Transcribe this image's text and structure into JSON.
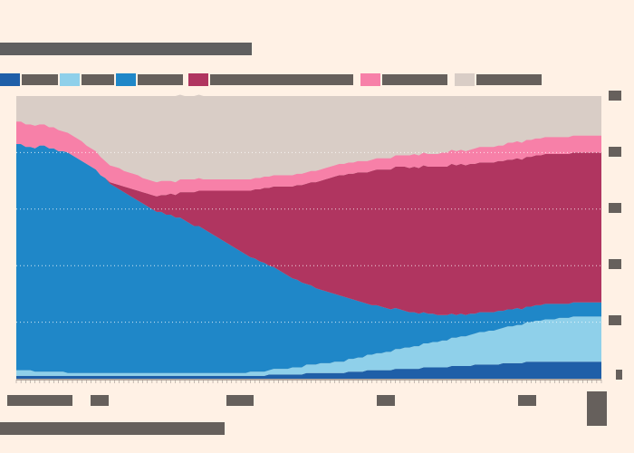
{
  "chart_data": {
    "type": "area",
    "stacked": true,
    "percent": true,
    "title": "",
    "xlabel": "",
    "ylabel": "",
    "ylim": [
      0,
      100
    ],
    "yticks": [
      "0",
      "20",
      "40",
      "60",
      "80",
      "100"
    ],
    "xticks": [],
    "grid": true,
    "legend_position": "top",
    "x": [
      0,
      1,
      2,
      3,
      4,
      5,
      6,
      7,
      8,
      9,
      10,
      11,
      12,
      13,
      14,
      15,
      16,
      17,
      18,
      19,
      20,
      21,
      22,
      23,
      24,
      25,
      26,
      27,
      28,
      29,
      30,
      31,
      32,
      33,
      34,
      35,
      36,
      37,
      38,
      39,
      40,
      41,
      42,
      43,
      44,
      45,
      46,
      47,
      48,
      49,
      50,
      51,
      52,
      53,
      54,
      55,
      56,
      57,
      58,
      59,
      60,
      61,
      62,
      63,
      64,
      65,
      66,
      67,
      68,
      69,
      70,
      71,
      72,
      73,
      74,
      75,
      76,
      77,
      78,
      79,
      80,
      81,
      82,
      83,
      84,
      85,
      86,
      87,
      88,
      89,
      90,
      91,
      92,
      93,
      94,
      95,
      96,
      97,
      98,
      99,
      100,
      101,
      102,
      103,
      104,
      105,
      106,
      107,
      108,
      109,
      110,
      111,
      112,
      113,
      114,
      115,
      116,
      117,
      118,
      119,
      120,
      121,
      122,
      123,
      124,
      125
    ],
    "series": [
      {
        "color": "#1f5fa8",
        "values": [
          1.0,
          1.0,
          1.0,
          1.0,
          1.0,
          1.0,
          1.0,
          1.0,
          1.0,
          1.0,
          1.0,
          1.0,
          1.0,
          1.0,
          1.0,
          1.0,
          1.0,
          1.0,
          1.0,
          1.0,
          1.0,
          1.0,
          1.0,
          1.0,
          1.0,
          1.0,
          1.0,
          1.0,
          1.0,
          1.0,
          1.0,
          1.0,
          1.0,
          1.0,
          1.0,
          1.0,
          1.0,
          1.0,
          1.0,
          1.0,
          1.0,
          1.0,
          1.0,
          1.0,
          1.0,
          1.0,
          1.0,
          1.0,
          1.0,
          1.0,
          1.0,
          1.0,
          1.0,
          1.0,
          1.5,
          1.5,
          1.5,
          1.5,
          1.5,
          1.5,
          1.5,
          1.5,
          2.0,
          2.0,
          2.0,
          2.0,
          2.0,
          2.0,
          2.0,
          2.0,
          2.0,
          2.5,
          2.5,
          2.5,
          2.5,
          3.0,
          3.0,
          3.0,
          3.0,
          3.0,
          3.0,
          3.5,
          3.5,
          3.5,
          3.5,
          3.5,
          3.5,
          4.0,
          4.0,
          4.0,
          4.0,
          4.0,
          4.0,
          4.5,
          4.5,
          4.5,
          4.5,
          4.5,
          5.0,
          5.0,
          5.0,
          5.0,
          5.0,
          5.0,
          5.5,
          5.5,
          5.5,
          5.5,
          5.5,
          6.0,
          6.0,
          6.0,
          6.0,
          6.0,
          6.0,
          6.0,
          6.0,
          6.0,
          6.0,
          6.0,
          6.0,
          6.0,
          6.0,
          6.0,
          6.0,
          6.0
        ]
      },
      {
        "color": "#8fd0ea",
        "values": [
          2.0,
          2.0,
          2.0,
          2.0,
          1.5,
          1.5,
          1.5,
          1.5,
          1.5,
          1.5,
          1.5,
          1.0,
          1.0,
          1.0,
          1.0,
          1.0,
          1.0,
          1.0,
          1.0,
          1.0,
          1.0,
          1.0,
          1.0,
          1.0,
          1.0,
          1.0,
          1.0,
          1.0,
          1.0,
          1.0,
          1.0,
          1.0,
          1.0,
          1.0,
          1.0,
          1.0,
          1.0,
          1.0,
          1.0,
          1.0,
          1.0,
          1.0,
          1.0,
          1.0,
          1.0,
          1.0,
          1.0,
          1.0,
          1.0,
          1.0,
          1.5,
          1.5,
          1.5,
          1.5,
          1.5,
          2.0,
          2.0,
          2.0,
          2.0,
          2.5,
          2.5,
          2.5,
          3.0,
          3.0,
          3.0,
          3.5,
          3.5,
          3.5,
          4.0,
          4.0,
          4.0,
          4.5,
          4.5,
          5.0,
          5.0,
          5.5,
          5.5,
          6.0,
          6.0,
          6.5,
          6.5,
          7.0,
          7.0,
          7.5,
          7.5,
          8.0,
          8.0,
          8.5,
          8.5,
          9.0,
          9.0,
          9.5,
          9.5,
          10.0,
          10.0,
          10.5,
          10.5,
          11.0,
          11.0,
          11.5,
          11.5,
          12.0,
          12.0,
          12.5,
          12.5,
          13.0,
          13.0,
          13.5,
          13.5,
          14.0,
          14.0,
          14.5,
          14.5,
          15.0,
          15.0,
          15.0,
          15.5,
          15.5,
          15.5,
          16.0,
          16.0,
          16.0,
          16.0,
          16.0,
          16.0,
          16.0
        ]
      },
      {
        "color": "#1f87c8",
        "values": [
          80.0,
          80.0,
          79.0,
          79.0,
          79.0,
          80.0,
          80.0,
          79.0,
          79.0,
          78.0,
          78.0,
          78.0,
          77.0,
          76.0,
          75.0,
          74.0,
          73.0,
          72.0,
          70.0,
          69.0,
          67.0,
          66.0,
          65.0,
          64.0,
          63.0,
          62.0,
          61.0,
          60.0,
          59.0,
          58.0,
          57.0,
          57.0,
          56.0,
          56.0,
          55.0,
          55.0,
          54.0,
          53.0,
          52.0,
          52.0,
          51.0,
          50.0,
          49.0,
          48.0,
          47.0,
          46.0,
          45.0,
          44.0,
          43.0,
          42.0,
          40.5,
          40.0,
          39.0,
          38.5,
          37.0,
          36.0,
          35.0,
          34.0,
          33.0,
          31.5,
          31.0,
          30.0,
          28.5,
          28.0,
          27.0,
          26.0,
          25.5,
          25.0,
          24.0,
          23.5,
          23.0,
          21.5,
          21.0,
          20.0,
          19.5,
          18.0,
          17.5,
          17.0,
          16.5,
          15.5,
          15.0,
          14.5,
          14.0,
          13.0,
          12.5,
          12.0,
          11.5,
          11.0,
          10.5,
          10.0,
          9.5,
          9.0,
          9.0,
          8.5,
          8.0,
          8.0,
          7.5,
          7.5,
          7.0,
          7.0,
          7.0,
          6.5,
          6.5,
          6.5,
          6.0,
          6.0,
          6.0,
          6.0,
          5.5,
          5.5,
          5.5,
          5.5,
          5.5,
          5.5,
          5.5,
          5.5,
          5.0,
          5.0,
          5.0,
          5.0,
          5.0,
          5.0,
          5.0,
          5.0,
          5.0,
          5.0
        ]
      },
      {
        "color": "#b03560",
        "values": [
          0.0,
          0.0,
          0.0,
          0.0,
          0.0,
          0.0,
          0.0,
          0.0,
          0.0,
          0.0,
          0.0,
          0.0,
          0.0,
          0.0,
          0.0,
          0.0,
          0.0,
          0.0,
          0.0,
          0.0,
          0.5,
          1.0,
          1.5,
          2.0,
          2.5,
          3.0,
          3.5,
          4.0,
          4.5,
          5.0,
          5.5,
          6.0,
          7.0,
          7.5,
          8.0,
          9.0,
          10.0,
          11.0,
          12.0,
          12.5,
          13.5,
          14.5,
          15.5,
          16.5,
          17.5,
          18.5,
          19.5,
          20.5,
          21.5,
          22.5,
          23.5,
          24.5,
          25.5,
          26.5,
          27.5,
          28.5,
          29.5,
          30.5,
          31.5,
          32.5,
          33.5,
          34.5,
          35.5,
          36.5,
          37.5,
          38.5,
          39.5,
          40.5,
          41.5,
          42.5,
          43.0,
          44.0,
          44.5,
          45.5,
          46.0,
          46.5,
          47.5,
          48.0,
          48.5,
          49.0,
          49.5,
          50.0,
          50.5,
          51.0,
          51.0,
          51.5,
          51.5,
          52.0,
          52.0,
          52.0,
          52.5,
          52.5,
          52.5,
          53.0,
          53.0,
          53.0,
          53.0,
          53.0,
          53.0,
          53.0,
          53.0,
          53.0,
          53.0,
          53.0,
          53.0,
          53.0,
          53.0,
          53.0,
          53.0,
          53.0,
          53.0,
          53.0,
          53.0,
          53.0,
          53.0,
          53.0,
          53.0,
          53.0,
          53.0,
          53.0,
          53.0,
          53.0,
          53.0,
          53.0,
          53.0,
          53.0
        ]
      },
      {
        "color": "#f780a8",
        "values": [
          8.0,
          8.0,
          8.0,
          8.0,
          8.0,
          7.5,
          7.5,
          7.5,
          7.5,
          7.5,
          7.0,
          7.0,
          7.0,
          7.0,
          7.0,
          6.5,
          6.5,
          6.5,
          6.5,
          6.0,
          6.0,
          6.0,
          6.0,
          5.5,
          5.5,
          5.5,
          5.5,
          5.0,
          5.0,
          5.0,
          5.0,
          5.0,
          5.0,
          4.5,
          4.5,
          4.5,
          4.5,
          4.5,
          4.5,
          4.5,
          4.0,
          4.0,
          4.0,
          4.0,
          4.0,
          4.0,
          4.0,
          4.0,
          4.0,
          4.0,
          4.0,
          4.0,
          4.0,
          4.0,
          4.0,
          4.0,
          4.0,
          4.0,
          4.0,
          4.0,
          4.0,
          4.0,
          4.0,
          4.0,
          4.0,
          4.0,
          4.0,
          4.0,
          4.0,
          4.0,
          4.0,
          4.0,
          4.0,
          4.0,
          4.0,
          4.0,
          4.0,
          4.0,
          4.0,
          4.0,
          4.0,
          4.0,
          4.0,
          4.0,
          4.5,
          4.5,
          4.5,
          4.5,
          4.5,
          4.5,
          4.5,
          5.0,
          5.0,
          5.0,
          5.0,
          5.0,
          5.0,
          5.0,
          5.5,
          5.5,
          5.5,
          5.5,
          5.5,
          5.5,
          5.5,
          6.0,
          6.0,
          6.0,
          6.0,
          6.0,
          6.0,
          6.0,
          6.0,
          6.0,
          6.0,
          6.0,
          6.0,
          6.0,
          6.0,
          6.0,
          6.0,
          6.0,
          6.0,
          6.0,
          6.0,
          6.0
        ]
      },
      {
        "color": "#d9cdc6",
        "values": [
          9.0,
          9.0,
          10.0,
          10.0,
          10.5,
          10.0,
          10.0,
          11.0,
          11.0,
          12.0,
          12.5,
          13.0,
          14.0,
          15.0,
          16.0,
          17.5,
          18.5,
          19.5,
          21.5,
          23.0,
          24.5,
          25.0,
          25.5,
          26.5,
          27.0,
          27.5,
          28.0,
          29.0,
          29.5,
          30.0,
          30.5,
          30.0,
          29.0,
          29.5,
          30.5,
          30.0,
          29.5,
          29.5,
          29.5,
          29.5,
          29.5,
          29.5,
          29.0,
          29.5,
          29.5,
          29.5,
          29.5,
          29.5,
          29.5,
          29.5,
          29.0,
          29.0,
          29.0,
          28.5,
          28.5,
          28.0,
          28.0,
          28.0,
          28.0,
          27.5,
          27.5,
          27.0,
          27.0,
          26.5,
          26.5,
          26.0,
          25.5,
          25.0,
          24.5,
          24.0,
          24.0,
          23.5,
          23.5,
          22.5,
          22.5,
          22.0,
          21.5,
          21.0,
          20.5,
          20.5,
          20.0,
          19.5,
          19.0,
          19.0,
          18.5,
          18.0,
          18.0,
          17.5,
          17.5,
          17.5,
          17.0,
          16.5,
          16.5,
          16.0,
          16.0,
          15.5,
          15.5,
          15.0,
          15.0,
          14.5,
          14.5,
          14.5,
          14.5,
          14.0,
          14.0,
          14.0,
          14.0,
          13.5,
          13.5,
          13.0,
          13.0,
          12.5,
          12.5,
          12.5,
          12.5,
          12.5,
          12.5,
          12.5,
          12.5,
          12.0,
          12.0,
          12.0,
          12.0,
          12.0,
          12.0,
          12.0
        ]
      }
    ]
  }
}
